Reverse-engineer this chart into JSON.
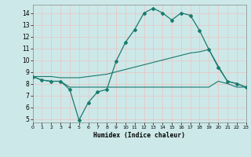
{
  "xlabel": "Humidex (Indice chaleur)",
  "xlim": [
    0,
    23
  ],
  "ylim": [
    4.7,
    14.7
  ],
  "yticks": [
    5,
    6,
    7,
    8,
    9,
    10,
    11,
    12,
    13,
    14
  ],
  "xticks": [
    0,
    1,
    2,
    3,
    4,
    5,
    6,
    7,
    8,
    9,
    10,
    11,
    12,
    13,
    14,
    15,
    16,
    17,
    18,
    19,
    20,
    21,
    22,
    23
  ],
  "bg_color": "#cde8e8",
  "line_color": "#1a7a6e",
  "grid_color": "#e8c8c8",
  "s1_x": [
    0,
    1,
    2,
    3,
    4,
    5,
    6,
    7,
    8,
    9,
    10,
    11,
    12,
    13,
    14,
    15,
    16,
    17,
    18,
    19,
    20,
    21,
    22,
    23
  ],
  "s1_y": [
    8.6,
    8.3,
    8.2,
    8.2,
    7.5,
    4.9,
    6.4,
    7.3,
    7.5,
    9.9,
    11.5,
    12.6,
    14.0,
    14.4,
    14.0,
    13.4,
    14.0,
    13.8,
    12.5,
    10.9,
    9.4,
    8.2,
    8.0,
    7.7
  ],
  "s2_x": [
    0,
    1,
    2,
    3,
    4,
    5,
    6,
    7,
    8,
    9,
    10,
    11,
    12,
    13,
    14,
    15,
    16,
    17,
    18,
    19,
    20,
    21,
    22,
    23
  ],
  "s2_y": [
    8.6,
    8.6,
    8.6,
    8.5,
    8.5,
    8.5,
    8.6,
    8.7,
    8.8,
    9.0,
    9.2,
    9.4,
    9.6,
    9.8,
    10.0,
    10.2,
    10.4,
    10.6,
    10.7,
    10.9,
    9.5,
    8.2,
    8.0,
    7.7
  ],
  "s3_x": [
    0,
    1,
    2,
    3,
    4,
    5,
    6,
    7,
    8,
    9,
    10,
    11,
    12,
    13,
    14,
    15,
    16,
    17,
    18,
    19,
    20,
    21,
    22,
    23
  ],
  "s3_y": [
    8.6,
    8.3,
    8.2,
    8.2,
    7.7,
    7.7,
    7.7,
    7.7,
    7.7,
    7.7,
    7.7,
    7.7,
    7.7,
    7.7,
    7.7,
    7.7,
    7.7,
    7.7,
    7.7,
    7.7,
    8.2,
    8.0,
    7.7,
    7.7
  ]
}
